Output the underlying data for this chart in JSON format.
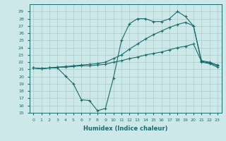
{
  "xlabel": "Humidex (Indice chaleur)",
  "xlim": [
    -0.5,
    23.5
  ],
  "ylim": [
    15,
    30
  ],
  "yticks": [
    15,
    16,
    17,
    18,
    19,
    20,
    21,
    22,
    23,
    24,
    25,
    26,
    27,
    28,
    29
  ],
  "xticks": [
    0,
    1,
    2,
    3,
    4,
    5,
    6,
    7,
    8,
    9,
    10,
    11,
    12,
    13,
    14,
    15,
    16,
    17,
    18,
    19,
    20,
    21,
    22,
    23
  ],
  "bg_color": "#cde8e8",
  "line_color": "#1a6b6b",
  "grid_color": "#aacccc",
  "line1_x": [
    0,
    1,
    2,
    3,
    4,
    5,
    6,
    7,
    8,
    9,
    10,
    11,
    12,
    13,
    14,
    15,
    16,
    17,
    18,
    19,
    20,
    21,
    22,
    23
  ],
  "line1_y": [
    21.2,
    21.1,
    21.2,
    21.2,
    20.1,
    19.0,
    16.8,
    16.7,
    15.3,
    15.6,
    19.8,
    25.0,
    27.3,
    28.0,
    28.0,
    27.6,
    27.6,
    28.0,
    29.0,
    28.3,
    27.0,
    22.0,
    21.8,
    21.3
  ],
  "line2_x": [
    0,
    1,
    2,
    3,
    4,
    5,
    6,
    7,
    8,
    9,
    10,
    11,
    12,
    13,
    14,
    15,
    16,
    17,
    18,
    19,
    20,
    21,
    22,
    23
  ],
  "line2_y": [
    21.2,
    21.1,
    21.2,
    21.3,
    21.3,
    21.4,
    21.5,
    21.5,
    21.6,
    21.7,
    22.0,
    22.2,
    22.5,
    22.7,
    23.0,
    23.2,
    23.4,
    23.7,
    24.0,
    24.2,
    24.5,
    22.1,
    21.9,
    21.5
  ],
  "line3_x": [
    0,
    1,
    2,
    3,
    4,
    5,
    6,
    7,
    8,
    9,
    10,
    11,
    12,
    13,
    14,
    15,
    16,
    17,
    18,
    19,
    20,
    21,
    22,
    23
  ],
  "line3_y": [
    21.2,
    21.1,
    21.2,
    21.3,
    21.4,
    21.5,
    21.6,
    21.7,
    21.8,
    22.0,
    22.5,
    23.0,
    23.8,
    24.5,
    25.2,
    25.8,
    26.3,
    26.8,
    27.2,
    27.5,
    27.0,
    22.2,
    22.0,
    21.6
  ]
}
